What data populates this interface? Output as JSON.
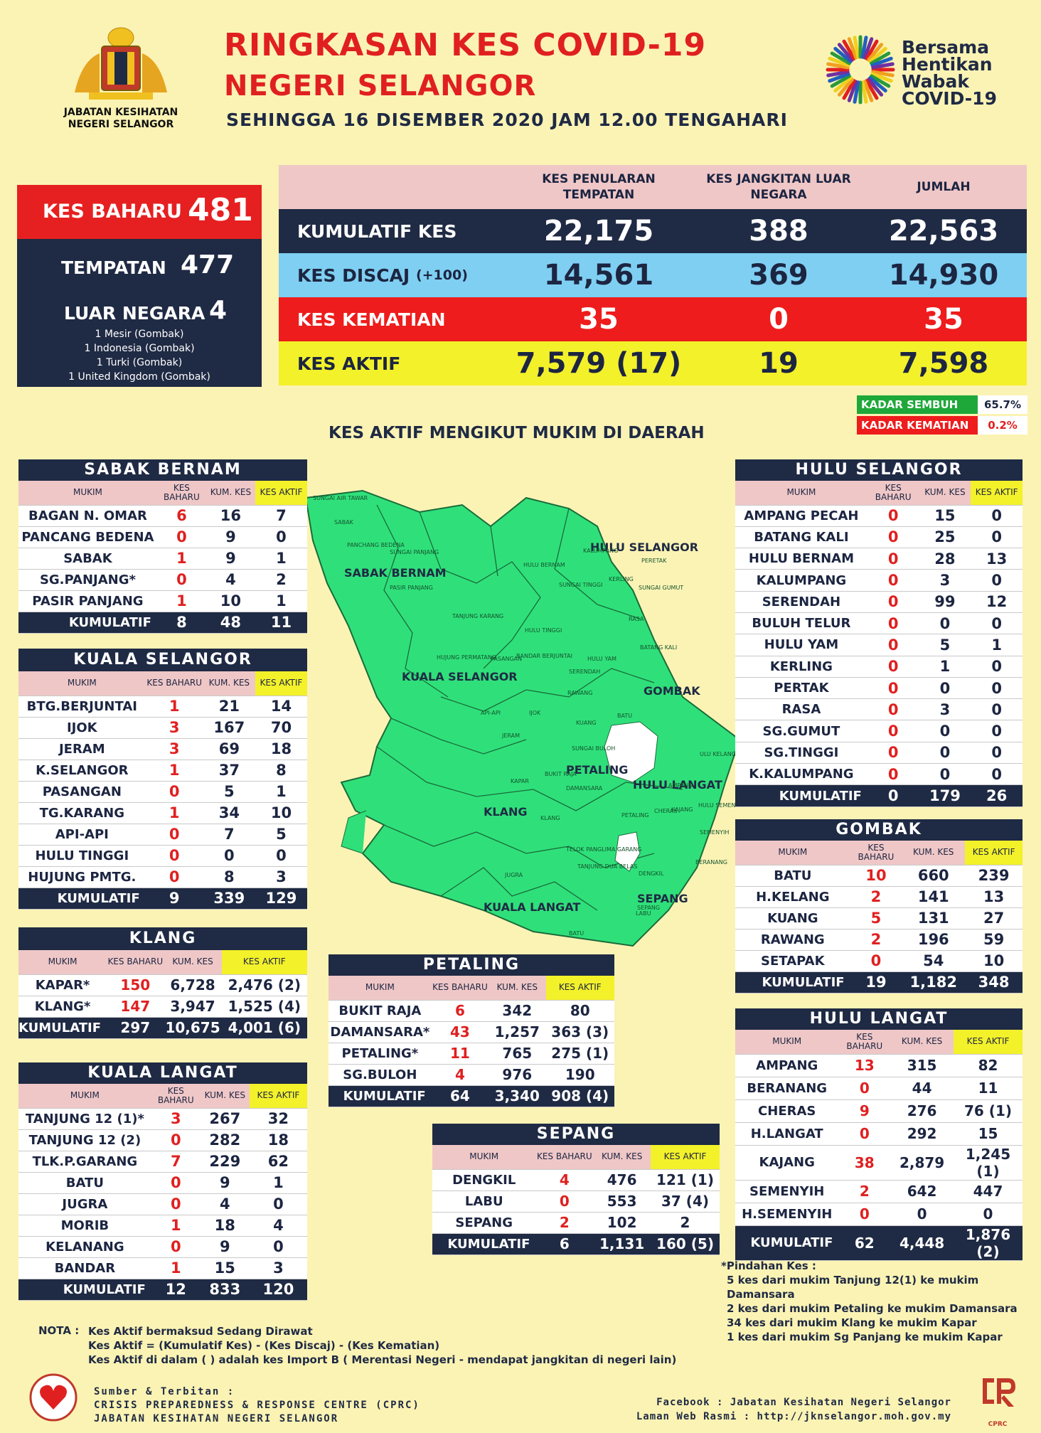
{
  "header": {
    "title1": "RINGKASAN KES COVID-19",
    "title2": "NEGERI SELANGOR",
    "date": "SEHINGGA 16 DISEMBER 2020 JAM 12.00 TENGAHARI",
    "dept1": "JABATAN KESIHATAN",
    "dept2": "NEGERI SELANGOR",
    "campaign": [
      "Bersama",
      "Hentikan",
      "Wabak",
      "COVID-19"
    ]
  },
  "summary": {
    "kes_baharu_label": "KES BAHARU",
    "kes_baharu": "481",
    "tempatan_label": "TEMPATAN",
    "tempatan": "477",
    "luar_label": "LUAR NEGARA",
    "luar": "4",
    "imports": [
      "1 Mesir (Gombak)",
      "1 Indonesia (Gombak)",
      "1 Turki (Gombak)",
      "1 United Kingdom (Gombak)"
    ]
  },
  "main": {
    "h1": "KES PENULARAN TEMPATAN",
    "h2": "KES JANGKITAN LUAR NEGARA",
    "h3": "JUMLAH",
    "rows": [
      {
        "label": "KUMULATIF KES",
        "a": "22,175",
        "b": "388",
        "c": "22,563"
      },
      {
        "label": "KES DISCAJ",
        "extra": "(+100)",
        "a": "14,561",
        "b": "369",
        "c": "14,930"
      },
      {
        "label": "KES KEMATIAN",
        "a": "35",
        "b": "0",
        "c": "35"
      },
      {
        "label": "KES AKTIF",
        "a": "7,579 (17)",
        "b": "19",
        "c": "7,598"
      }
    ],
    "sembuh_label": "KADAR SEMBUH",
    "sembuh": "65.7%",
    "kematian_label": "KADAR KEMATIAN",
    "kematian": "0.2%"
  },
  "map_title": "KES AKTIF MENGIKUT MUKIM DI DAERAH",
  "col": {
    "mukim": "MUKIM",
    "baharu": "KES BAHARU",
    "kum": "KUM. KES",
    "aktif": "KES AKTIF"
  },
  "districts": {
    "sabak": {
      "name": "SABAK BERNAM",
      "rows": [
        [
          "BAGAN N. OMAR",
          "6",
          "16",
          "7"
        ],
        [
          "PANCANG BEDENA",
          "0",
          "9",
          "0"
        ],
        [
          "SABAK",
          "1",
          "9",
          "1"
        ],
        [
          "SG.PANJANG*",
          "0",
          "4",
          "2"
        ],
        [
          "PASIR PANJANG",
          "1",
          "10",
          "1"
        ]
      ],
      "kum": [
        "KUMULATIF",
        "8",
        "48",
        "11"
      ]
    },
    "kualaselangor": {
      "name": "KUALA SELANGOR",
      "rows": [
        [
          "BTG.BERJUNTAI",
          "1",
          "21",
          "14"
        ],
        [
          "IJOK",
          "3",
          "167",
          "70"
        ],
        [
          "JERAM",
          "3",
          "69",
          "18"
        ],
        [
          "K.SELANGOR",
          "1",
          "37",
          "8"
        ],
        [
          "PASANGAN",
          "0",
          "5",
          "1"
        ],
        [
          "TG.KARANG",
          "1",
          "34",
          "10"
        ],
        [
          "API-API",
          "0",
          "7",
          "5"
        ],
        [
          "HULU TINGGI",
          "0",
          "0",
          "0"
        ],
        [
          "HUJUNG PMTG.",
          "0",
          "8",
          "3"
        ]
      ],
      "kum": [
        "KUMULATIF",
        "9",
        "339",
        "129"
      ]
    },
    "klang": {
      "name": "KLANG",
      "rows": [
        [
          "KAPAR*",
          "150",
          "6,728",
          "2,476 (2)"
        ],
        [
          "KLANG*",
          "147",
          "3,947",
          "1,525 (4)"
        ]
      ],
      "kum": [
        "KUMULATIF",
        "297",
        "10,675",
        "4,001 (6)"
      ]
    },
    "kualalangat": {
      "name": "KUALA LANGAT",
      "rows": [
        [
          "TANJUNG 12 (1)*",
          "3",
          "267",
          "32"
        ],
        [
          "TANJUNG 12 (2)",
          "0",
          "282",
          "18"
        ],
        [
          "TLK.P.GARANG",
          "7",
          "229",
          "62"
        ],
        [
          "BATU",
          "0",
          "9",
          "1"
        ],
        [
          "JUGRA",
          "0",
          "4",
          "0"
        ],
        [
          "MORIB",
          "1",
          "18",
          "4"
        ],
        [
          "KELANANG",
          "0",
          "9",
          "0"
        ],
        [
          "BANDAR",
          "1",
          "15",
          "3"
        ]
      ],
      "kum": [
        "KUMULATIF",
        "12",
        "833",
        "120"
      ]
    },
    "petaling": {
      "name": "PETALING",
      "rows": [
        [
          "BUKIT RAJA",
          "6",
          "342",
          "80"
        ],
        [
          "DAMANSARA*",
          "43",
          "1,257",
          "363 (3)"
        ],
        [
          "PETALING*",
          "11",
          "765",
          "275 (1)"
        ],
        [
          "SG.BULOH",
          "4",
          "976",
          "190"
        ]
      ],
      "kum": [
        "KUMULATIF",
        "64",
        "3,340",
        "908 (4)"
      ]
    },
    "sepang": {
      "name": "SEPANG",
      "rows": [
        [
          "DENGKIL",
          "4",
          "476",
          "121 (1)"
        ],
        [
          "LABU",
          "0",
          "553",
          "37 (4)"
        ],
        [
          "SEPANG",
          "2",
          "102",
          "2"
        ]
      ],
      "kum": [
        "KUMULATIF",
        "6",
        "1,131",
        "160 (5)"
      ]
    },
    "huluselangor": {
      "name": "HULU SELANGOR",
      "rows": [
        [
          "AMPANG PECAH",
          "0",
          "15",
          "0"
        ],
        [
          "BATANG KALI",
          "0",
          "25",
          "0"
        ],
        [
          "HULU BERNAM",
          "0",
          "28",
          "13"
        ],
        [
          "KALUMPANG",
          "0",
          "3",
          "0"
        ],
        [
          "SERENDAH",
          "0",
          "99",
          "12"
        ],
        [
          "BULUH TELUR",
          "0",
          "0",
          "0"
        ],
        [
          "HULU YAM",
          "0",
          "5",
          "1"
        ],
        [
          "KERLING",
          "0",
          "1",
          "0"
        ],
        [
          "PERTAK",
          "0",
          "0",
          "0"
        ],
        [
          "RASA",
          "0",
          "3",
          "0"
        ],
        [
          "SG.GUMUT",
          "0",
          "0",
          "0"
        ],
        [
          "SG.TINGGI",
          "0",
          "0",
          "0"
        ],
        [
          "K.KALUMPANG",
          "0",
          "0",
          "0"
        ]
      ],
      "kum": [
        "KUMULATIF",
        "0",
        "179",
        "26"
      ]
    },
    "gombak": {
      "name": "GOMBAK",
      "rows": [
        [
          "BATU",
          "10",
          "660",
          "239"
        ],
        [
          "H.KELANG",
          "2",
          "141",
          "13"
        ],
        [
          "KUANG",
          "5",
          "131",
          "27"
        ],
        [
          "RAWANG",
          "2",
          "196",
          "59"
        ],
        [
          "SETAPAK",
          "0",
          "54",
          "10"
        ]
      ],
      "kum": [
        "KUMULATIF",
        "19",
        "1,182",
        "348"
      ]
    },
    "hululangat": {
      "name": "HULU LANGAT",
      "rows": [
        [
          "AMPANG",
          "13",
          "315",
          "82"
        ],
        [
          "BERANANG",
          "0",
          "44",
          "11"
        ],
        [
          "CHERAS",
          "9",
          "276",
          "76 (1)"
        ],
        [
          "H.LANGAT",
          "0",
          "292",
          "15"
        ],
        [
          "KAJANG",
          "38",
          "2,879",
          "1,245 (1)"
        ],
        [
          "SEMENYIH",
          "2",
          "642",
          "447"
        ],
        [
          "H.SEMENYIH",
          "0",
          "0",
          "0"
        ]
      ],
      "kum": [
        "KUMULATIF",
        "62",
        "4,448",
        "1,876 (2)"
      ]
    }
  },
  "map_labels": [
    "SABAK BERNAM",
    "HULU SELANGOR",
    "KUALA SELANGOR",
    "GOMBAK",
    "PETALING",
    "HULU LANGAT",
    "KLANG",
    "KUALA LANGAT",
    "SEPANG"
  ],
  "map_small": [
    "SUNGAI AIR TAWAR",
    "SABAK",
    "PANCHANG BEDENA",
    "SUNGAI PANJANG",
    "PASIR PANJANG",
    "HULU BERNAM",
    "KALUMPANG",
    "PERETAK",
    "SUNGAI GUMUT",
    "KERLING",
    "SUNGAI TINGGI",
    "RASA",
    "TANJUNG KARANG",
    "HULU TINGGI",
    "BATANG KALI",
    "HUJUNG PERMATANG",
    "PASANGAN",
    "BANDAR BERJUNTAI",
    "HULU YAM",
    "SERENDAH",
    "API-API",
    "IJOK",
    "RAWANG",
    "JERAM",
    "KUANG",
    "BATU",
    "SUNGAI BULOH",
    "KAPAR",
    "BUKIT RAJA",
    "DAMANSARA",
    "ULU KELANG",
    "AMPANG",
    "KLANG",
    "PETALING",
    "CHERAS",
    "KAJANG",
    "HULU SEMENYIH",
    "SEMENYIH",
    "TELOK PANGLIMA GARANG",
    "JUGRA",
    "TANJUNG DUA BELAS",
    "DENGKIL",
    "BERANANG",
    "BATU",
    "SEPANG",
    "LABU"
  ],
  "pindahan": {
    "title": "*Pindahan Kes :",
    "lines": [
      "5 kes dari mukim Tanjung 12(1) ke mukim Damansara",
      "2 kes dari mukim Petaling ke mukim Damansara",
      "34 kes dari mukim Klang ke mukim Kapar",
      "1 kes dari mukim Sg Panjang ke mukim Kapar"
    ]
  },
  "nota": {
    "label": "NOTA :",
    "lines": [
      "Kes Aktif bermaksud Sedang Dirawat",
      "Kes Aktif = (Kumulatif Kes) - (Kes Discaj) - (Kes Kematian)",
      "Kes Aktif di dalam (     ) adalah kes Import B ( Merentasi Negeri - mendapat jangkitan di negeri lain)"
    ]
  },
  "footer": {
    "src1": "Sumber & Terbitan :",
    "src2": "CRISIS PREPAREDNESS & RESPONSE CENTRE (CPRC)",
    "src3": "JABATAN KESIHATAN NEGERI SELANGOR",
    "fb": "Facebook : Jabatan Kesihatan Negeri Selangor",
    "web": "Laman Web Rasmi : http://jknselangor.moh.gov.my",
    "cprc_logo": "CPRC"
  }
}
